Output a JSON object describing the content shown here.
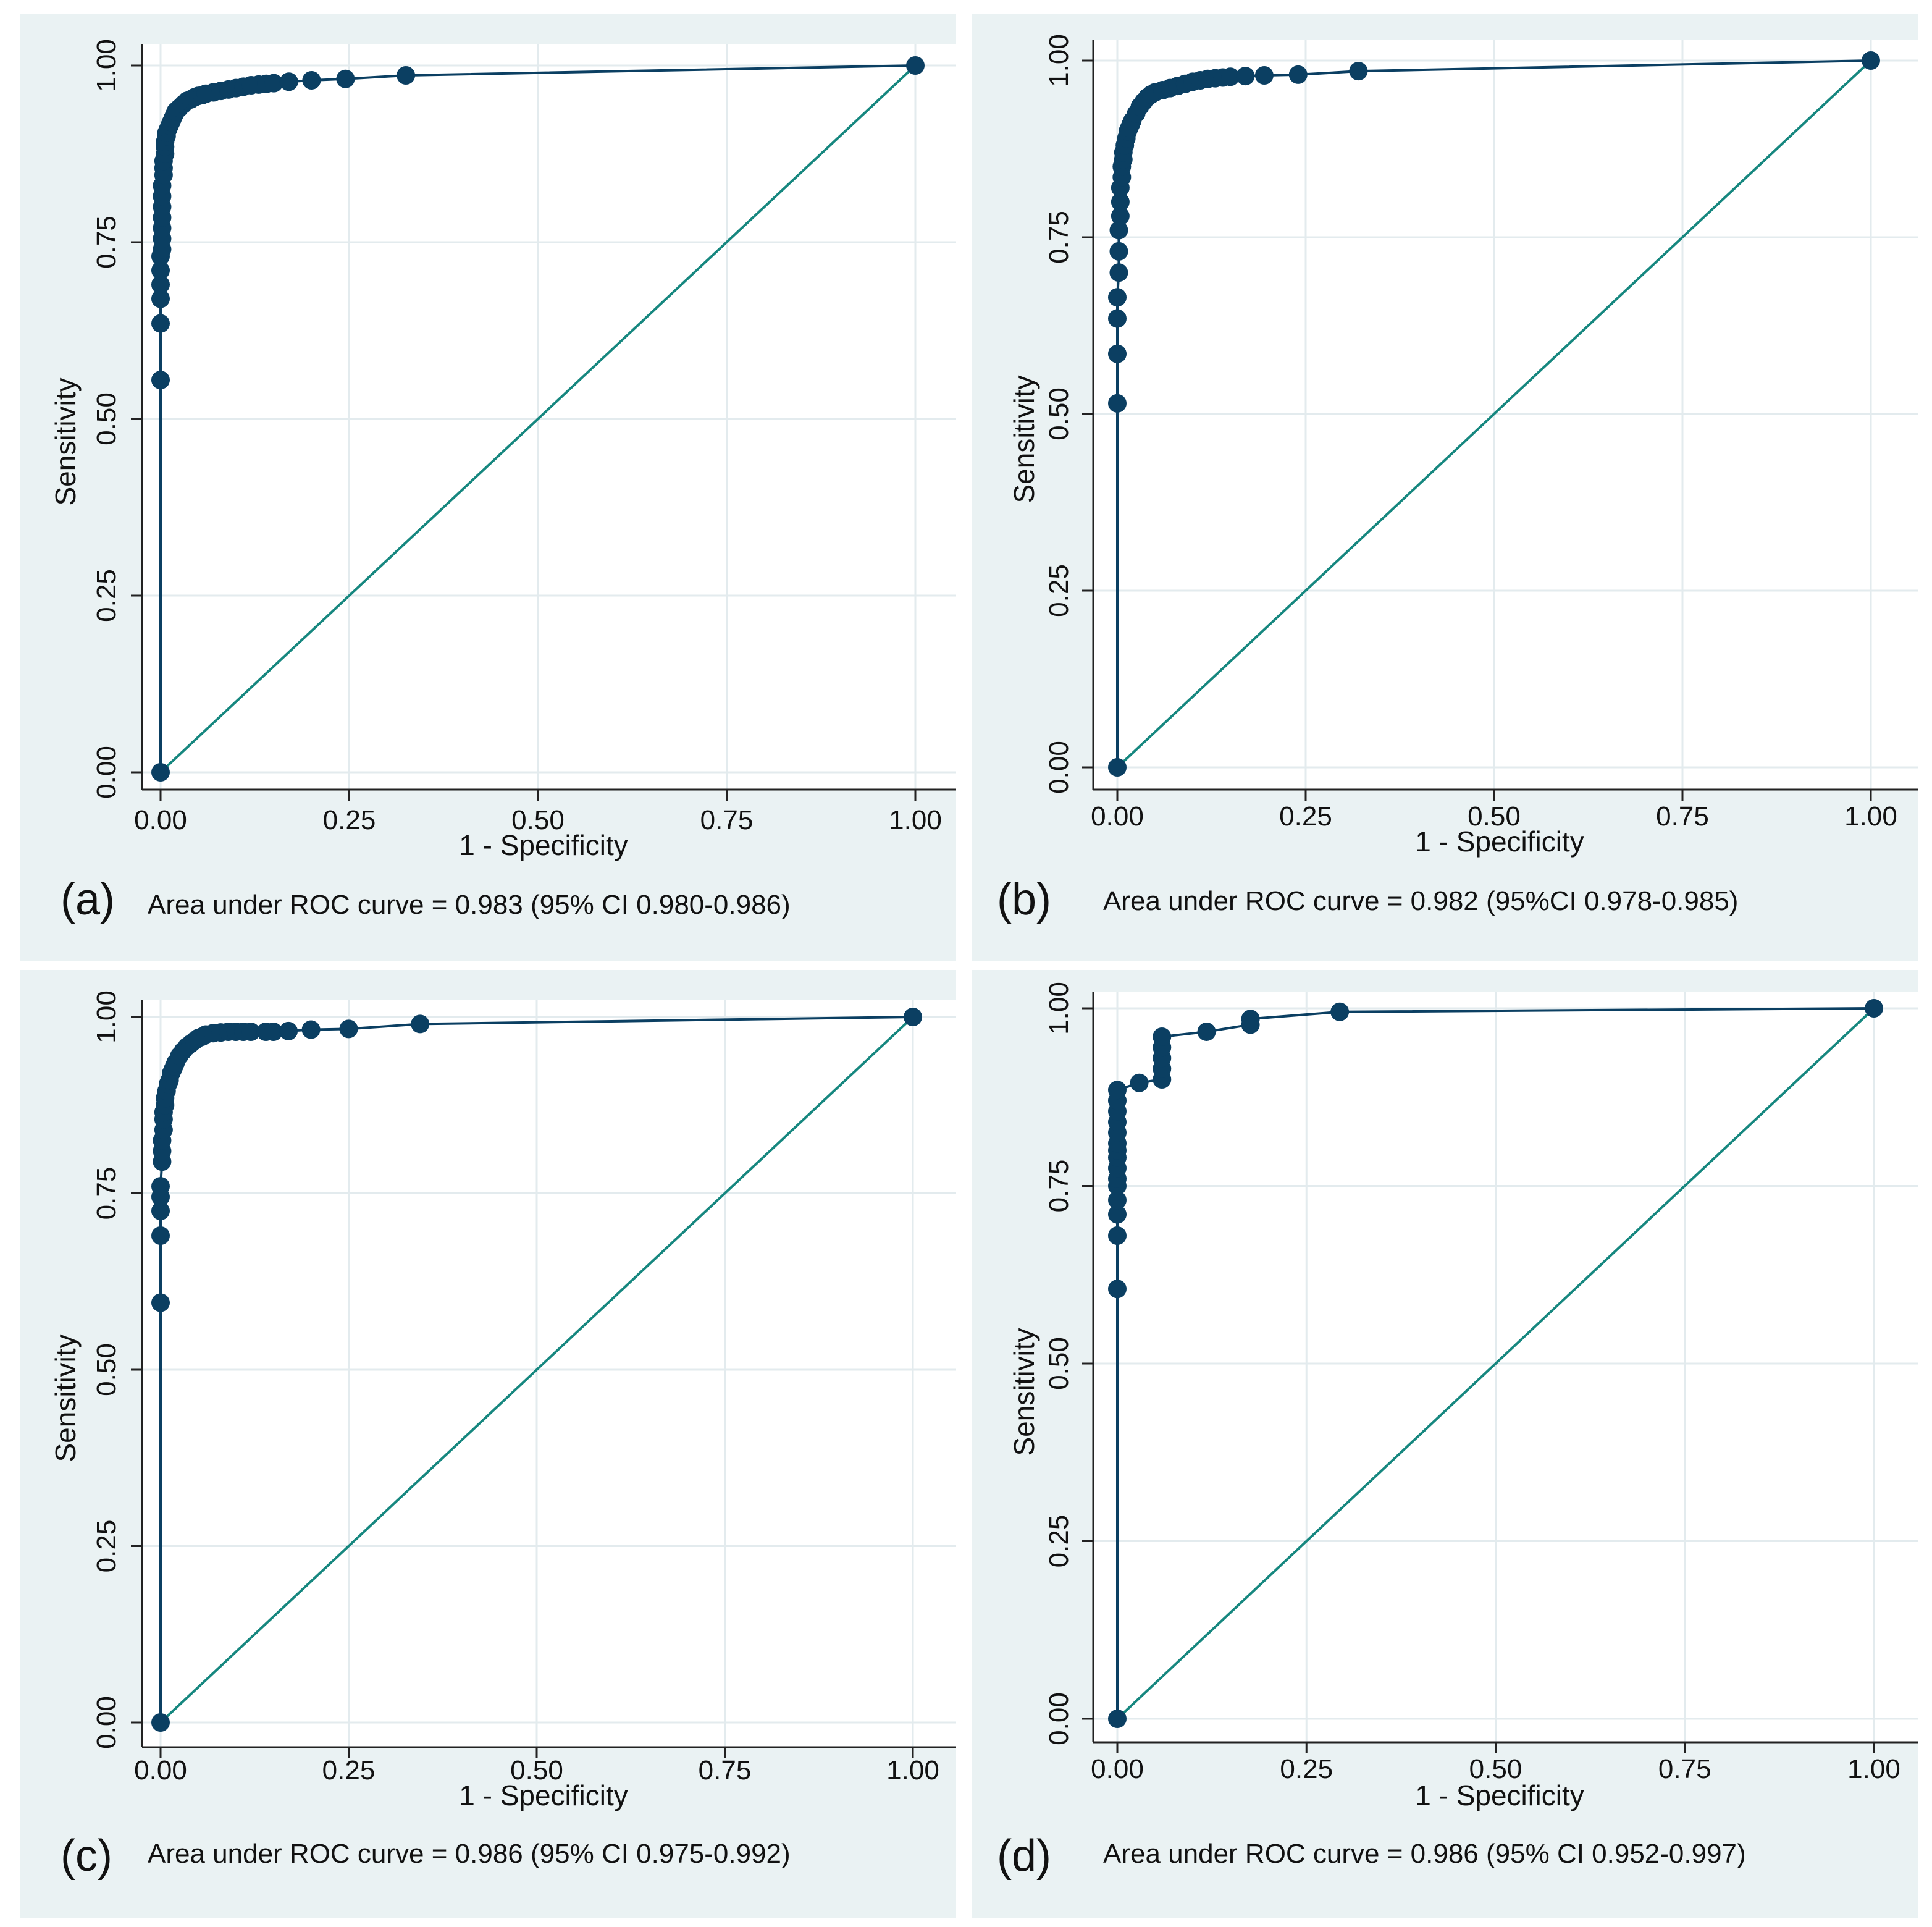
{
  "chart_data": [
    {
      "type": "line",
      "panel": "(a)",
      "caption": "Area under ROC curve = 0.983 (95% CI 0.980-0.986)",
      "xlabel": "1 - Specificity",
      "ylabel": "Sensitivity",
      "xlim": [
        0,
        1
      ],
      "ylim": [
        0,
        1
      ],
      "xticks": [
        "0.00",
        "0.25",
        "0.50",
        "0.75",
        "1.00"
      ],
      "yticks": [
        "0.00",
        "0.25",
        "0.50",
        "0.75",
        "1.00"
      ],
      "grid": true,
      "colors": {
        "roc": "#0b3f62",
        "reference": "#16877f",
        "grid": "#ffffff",
        "plot_bg": "#ffffff",
        "outer_bg": "#eaf2f3"
      },
      "series": [
        {
          "name": "ROC",
          "x": [
            0,
            0,
            0,
            0,
            0,
            0,
            0,
            0.002,
            0.002,
            0.002,
            0.002,
            0.002,
            0.002,
            0.002,
            0.004,
            0.004,
            0.004,
            0.006,
            0.006,
            0.006,
            0.008,
            0.008,
            0.01,
            0.012,
            0.014,
            0.016,
            0.018,
            0.02,
            0.022,
            0.025,
            0.03,
            0.035,
            0.04,
            0.045,
            0.05,
            0.055,
            0.06,
            0.07,
            0.08,
            0.09,
            0.1,
            0.11,
            0.12,
            0.13,
            0.14,
            0.15,
            0.17,
            0.2,
            0.245,
            0.325,
            1
          ],
          "y": [
            0,
            0.555,
            0.635,
            0.67,
            0.69,
            0.71,
            0.73,
            0.74,
            0.755,
            0.77,
            0.785,
            0.8,
            0.815,
            0.83,
            0.845,
            0.855,
            0.865,
            0.875,
            0.885,
            0.892,
            0.9,
            0.905,
            0.91,
            0.915,
            0.92,
            0.925,
            0.93,
            0.935,
            0.937,
            0.94,
            0.945,
            0.95,
            0.952,
            0.955,
            0.957,
            0.958,
            0.96,
            0.962,
            0.964,
            0.966,
            0.968,
            0.97,
            0.972,
            0.973,
            0.974,
            0.975,
            0.977,
            0.979,
            0.981,
            0.986,
            1
          ]
        },
        {
          "name": "Reference",
          "x": [
            0,
            1
          ],
          "y": [
            0,
            1
          ]
        }
      ]
    },
    {
      "type": "line",
      "panel": "(b)",
      "caption": "Area under ROC curve = 0.982 (95%CI 0.978-0.985)",
      "xlabel": "1 - Specificity",
      "ylabel": "Sensitivity",
      "xlim": [
        0,
        1
      ],
      "ylim": [
        0,
        1
      ],
      "xticks": [
        "0.00",
        "0.25",
        "0.50",
        "0.75",
        "1.00"
      ],
      "yticks": [
        "0.00",
        "0.25",
        "0.50",
        "0.75",
        "1.00"
      ],
      "grid": true,
      "colors": {
        "roc": "#0b3f62",
        "reference": "#16877f",
        "grid": "#ffffff",
        "plot_bg": "#ffffff",
        "outer_bg": "#eaf2f3"
      },
      "series": [
        {
          "name": "ROC",
          "x": [
            0,
            0,
            0,
            0,
            0,
            0.002,
            0.002,
            0.002,
            0.004,
            0.004,
            0.004,
            0.006,
            0.006,
            0.008,
            0.008,
            0.01,
            0.012,
            0.014,
            0.016,
            0.018,
            0.02,
            0.025,
            0.03,
            0.035,
            0.04,
            0.045,
            0.05,
            0.06,
            0.07,
            0.08,
            0.09,
            0.1,
            0.11,
            0.12,
            0.13,
            0.14,
            0.15,
            0.17,
            0.195,
            0.24,
            0.32,
            1
          ],
          "y": [
            0,
            0.515,
            0.585,
            0.635,
            0.665,
            0.7,
            0.73,
            0.76,
            0.78,
            0.8,
            0.82,
            0.835,
            0.85,
            0.86,
            0.87,
            0.88,
            0.89,
            0.9,
            0.905,
            0.91,
            0.915,
            0.925,
            0.935,
            0.942,
            0.948,
            0.952,
            0.955,
            0.958,
            0.961,
            0.964,
            0.967,
            0.97,
            0.972,
            0.974,
            0.975,
            0.976,
            0.977,
            0.978,
            0.979,
            0.98,
            0.985,
            1
          ]
        },
        {
          "name": "Reference",
          "x": [
            0,
            1
          ],
          "y": [
            0,
            1
          ]
        }
      ]
    },
    {
      "type": "line",
      "panel": "(c)",
      "caption": "Area under ROC curve = 0.986 (95% CI 0.975-0.992)",
      "xlabel": "1 - Specificity",
      "ylabel": "Sensitivity",
      "xlim": [
        0,
        1
      ],
      "ylim": [
        0,
        1
      ],
      "xticks": [
        "0.00",
        "0.25",
        "0.50",
        "0.75",
        "1.00"
      ],
      "yticks": [
        "0.00",
        "0.25",
        "0.50",
        "0.75",
        "1.00"
      ],
      "grid": true,
      "colors": {
        "roc": "#0b3f62",
        "reference": "#16877f",
        "grid": "#ffffff",
        "plot_bg": "#ffffff",
        "outer_bg": "#eaf2f3"
      },
      "series": [
        {
          "name": "ROC",
          "x": [
            0,
            0,
            0,
            0,
            0,
            0,
            0.002,
            0.002,
            0.002,
            0.004,
            0.004,
            0.004,
            0.006,
            0.006,
            0.008,
            0.01,
            0.012,
            0.014,
            0.016,
            0.018,
            0.02,
            0.025,
            0.03,
            0.035,
            0.04,
            0.045,
            0.05,
            0.055,
            0.06,
            0.07,
            0.08,
            0.09,
            0.1,
            0.11,
            0.12,
            0.14,
            0.15,
            0.17,
            0.2,
            0.25,
            0.345,
            1
          ],
          "y": [
            0,
            0.595,
            0.69,
            0.725,
            0.745,
            0.76,
            0.795,
            0.81,
            0.825,
            0.84,
            0.855,
            0.865,
            0.875,
            0.885,
            0.895,
            0.905,
            0.91,
            0.92,
            0.925,
            0.93,
            0.935,
            0.945,
            0.952,
            0.958,
            0.962,
            0.966,
            0.97,
            0.972,
            0.975,
            0.977,
            0.978,
            0.979,
            0.979,
            0.979,
            0.979,
            0.979,
            0.979,
            0.98,
            0.982,
            0.983,
            0.99,
            1
          ]
        },
        {
          "name": "Reference",
          "x": [
            0,
            1
          ],
          "y": [
            0,
            1
          ]
        }
      ]
    },
    {
      "type": "line",
      "panel": "(d)",
      "caption": "Area under ROC curve = 0.986 (95% CI 0.952-0.997)",
      "xlabel": "1 - Specificity",
      "ylabel": "Sensitivity",
      "xlim": [
        0,
        1
      ],
      "ylim": [
        0,
        1
      ],
      "xticks": [
        "0.00",
        "0.25",
        "0.50",
        "0.75",
        "1.00"
      ],
      "yticks": [
        "0.00",
        "0.25",
        "0.50",
        "0.75",
        "1.00"
      ],
      "grid": true,
      "colors": {
        "roc": "#0b3f62",
        "reference": "#16877f",
        "grid": "#ffffff",
        "plot_bg": "#ffffff",
        "outer_bg": "#eaf2f3"
      },
      "series": [
        {
          "name": "ROC",
          "x": [
            0,
            0,
            0,
            0,
            0,
            0,
            0,
            0,
            0,
            0,
            0,
            0,
            0,
            0,
            0,
            0,
            0.029,
            0.059,
            0.059,
            0.059,
            0.059,
            0.059,
            0.118,
            0.176,
            0.176,
            0.294,
            1
          ],
          "y": [
            0,
            0.605,
            0.68,
            0.71,
            0.73,
            0.75,
            0.76,
            0.775,
            0.79,
            0.8,
            0.81,
            0.825,
            0.84,
            0.855,
            0.87,
            0.885,
            0.895,
            0.9,
            0.915,
            0.93,
            0.945,
            0.96,
            0.967,
            0.977,
            0.985,
            0.995,
            1
          ]
        },
        {
          "name": "Reference",
          "x": [
            0,
            1
          ],
          "y": [
            0,
            1
          ]
        }
      ]
    }
  ]
}
